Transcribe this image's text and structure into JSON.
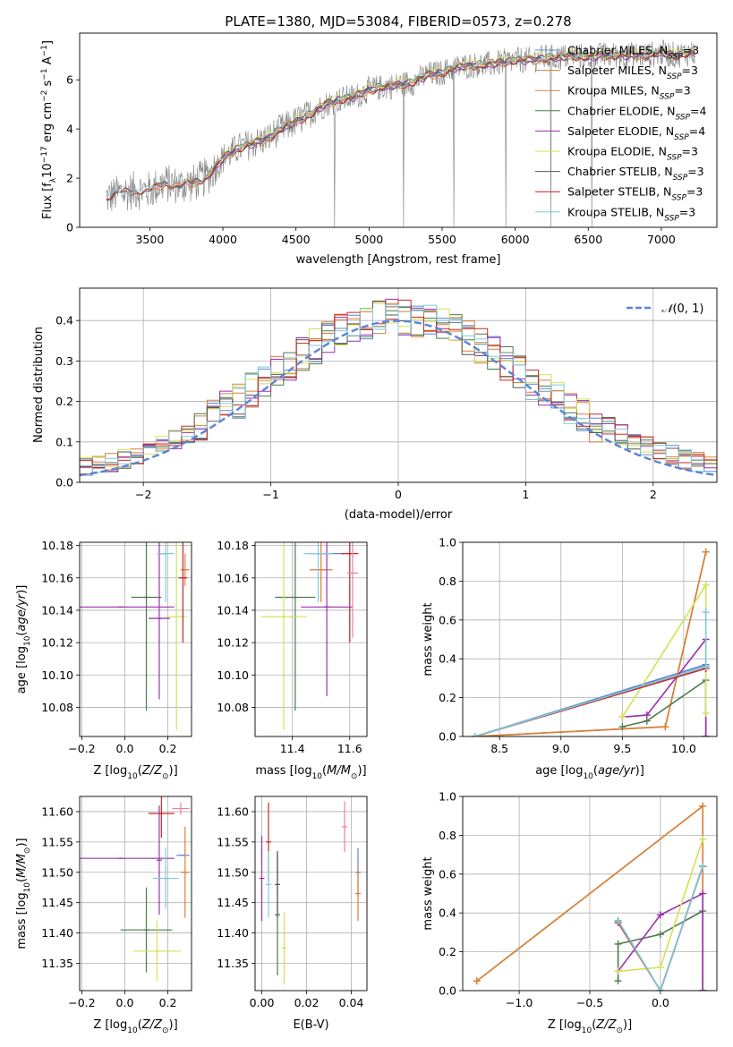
{
  "figure": {
    "title": "PLATE=1380, MJD=53084, FIBERID=0573, z=0.278"
  },
  "chart_data": [
    {
      "id": "spectrum",
      "type": "line",
      "xlabel": "wavelength [Angstrom, rest frame]",
      "ylabel": "Flux [f_λ 10^-17 erg cm^-2 s^-1 A^-1]",
      "xlim": [
        3020,
        7380
      ],
      "ylim": [
        0,
        7.9
      ],
      "xticks": [
        3500,
        4000,
        4500,
        5000,
        5500,
        6000,
        6500,
        7000
      ],
      "yticks": [
        0,
        2,
        4,
        6
      ],
      "grid": false,
      "legend_position": "upper-right",
      "data_x": [
        3200,
        3300,
        3400,
        3500,
        3600,
        3700,
        3800,
        3900,
        4000,
        4100,
        4200,
        4300,
        4400,
        4500,
        4600,
        4700,
        4800,
        4900,
        5000,
        5100,
        5200,
        5300,
        5400,
        5500,
        5600,
        5700,
        5800,
        5900,
        6000,
        6100,
        6200,
        6300,
        6400,
        6500,
        6600,
        6700,
        6800,
        6900,
        7000,
        7100,
        7200
      ],
      "data_y": [
        1.2,
        1.4,
        1.5,
        1.5,
        1.8,
        1.7,
        1.8,
        2.1,
        2.8,
        3.2,
        3.4,
        3.6,
        4.0,
        4.3,
        4.6,
        5.0,
        5.2,
        5.3,
        5.6,
        5.7,
        5.8,
        5.9,
        6.2,
        6.3,
        6.5,
        6.6,
        6.6,
        6.7,
        6.8,
        6.8,
        6.9,
        6.9,
        7.0,
        6.9,
        7.0,
        7.0,
        7.0,
        7.0,
        7.1,
        7.0,
        7.1
      ],
      "series": [
        {
          "name": "Chabrier MILES, N_SSP=3",
          "color": "#5b84d6",
          "offset": 0.0,
          "start": 3520
        },
        {
          "name": "Salpeter MILES, N_SSP=3",
          "color": "#e07b39",
          "offset": 0.05,
          "start": 3520
        },
        {
          "name": "Kroupa MILES, N_SSP=3",
          "color": "#d4823b",
          "offset": -0.05,
          "start": 3520
        },
        {
          "name": "Chabrier ELODIE, N_SSP=4",
          "color": "#4c7a4e",
          "offset": 0.02,
          "start": 3900
        },
        {
          "name": "Salpeter ELODIE, N_SSP=4",
          "color": "#9b2fae",
          "offset": -0.02,
          "start": 3900
        },
        {
          "name": "Kroupa ELODIE, N_SSP=3",
          "color": "#d4e157",
          "offset": 0.1,
          "start": 3900
        },
        {
          "name": "Chabrier STELIB, N_SSP=3",
          "color": "#555555",
          "offset": 0.0,
          "start": 3200
        },
        {
          "name": "Salpeter STELIB, N_SSP=3",
          "color": "#c62828",
          "offset": -0.04,
          "start": 3200
        },
        {
          "name": "Kroupa STELIB, N_SSP=3",
          "color": "#80cbd6",
          "offset": 0.03,
          "start": 3200
        }
      ]
    },
    {
      "id": "residuals",
      "type": "line",
      "xlabel": "(data-model)/error",
      "ylabel": "Normed distribution",
      "xlim": [
        -2.5,
        2.5
      ],
      "ylim": [
        0,
        0.48
      ],
      "xticks": [
        -2,
        -1,
        0,
        1,
        2
      ],
      "yticks": [
        0.0,
        0.1,
        0.2,
        0.3,
        0.4
      ],
      "grid": true,
      "legend_position": "upper-right",
      "reference": {
        "name": "N(0,1)",
        "color": "#5b84d6"
      },
      "hist_series_colors": [
        "#5b84d6",
        "#e07b39",
        "#d4823b",
        "#4c7a4e",
        "#9b2fae",
        "#d4e157",
        "#555555",
        "#c62828",
        "#80cbd6"
      ]
    },
    {
      "id": "age-vs-z",
      "type": "scatter",
      "xlabel": "Z [log10(Z/Z☉)]",
      "ylabel": "age [log10(age/yr)]",
      "xlim": [
        -0.21,
        0.31
      ],
      "ylim": [
        10.062,
        10.182
      ],
      "xticks": [
        -0.2,
        0.0,
        0.2
      ],
      "yticks": [
        10.08,
        10.1,
        10.12,
        10.14,
        10.16,
        10.18
      ],
      "grid": true,
      "points": [
        {
          "x": 0.17,
          "y": 10.175,
          "xerr": 0.02,
          "yerr": 0.0,
          "color": "#5b84d6"
        },
        {
          "x": 0.28,
          "y": 10.165,
          "xerr": 0.02,
          "yerr": 0.01,
          "color": "#e07b39"
        },
        {
          "x": 0.1,
          "y": 10.148,
          "xerr": 0.07,
          "yerr": 0.07,
          "color": "#4c7a4e"
        },
        {
          "x": -0.02,
          "y": 10.142,
          "xerr": 0.25,
          "yerr": 0.0,
          "color": "#9b2fae"
        },
        {
          "x": 0.16,
          "y": 10.135,
          "xerr": 0.05,
          "yerr": 0.05,
          "color": "#9b2fae"
        },
        {
          "x": 0.24,
          "y": 10.136,
          "xerr": 0.05,
          "yerr": 0.07,
          "color": "#d4e157"
        },
        {
          "x": 0.19,
          "y": 10.175,
          "xerr": 0.04,
          "yerr": 0.03,
          "color": "#80cbd6"
        },
        {
          "x": 0.27,
          "y": 10.16,
          "xerr": 0.02,
          "yerr": 0.04,
          "color": "#c62828"
        }
      ]
    },
    {
      "id": "age-vs-mass",
      "type": "scatter",
      "xlabel": "mass [log10(M/M☉)]",
      "ylabel": "",
      "xlim": [
        11.27,
        11.66
      ],
      "ylim": [
        10.062,
        10.182
      ],
      "xticks": [
        11.4,
        11.6
      ],
      "yticks": [
        10.08,
        10.1,
        10.12,
        10.14,
        10.16,
        10.18
      ],
      "grid": true,
      "points": [
        {
          "x": 11.52,
          "y": 10.175,
          "xerr": 0.06,
          "yerr": 0.0,
          "color": "#5b84d6"
        },
        {
          "x": 11.5,
          "y": 10.165,
          "xerr": 0.04,
          "yerr": 0.02,
          "color": "#e07b39"
        },
        {
          "x": 11.41,
          "y": 10.148,
          "xerr": 0.07,
          "yerr": 0.07,
          "color": "#4c7a4e"
        },
        {
          "x": 11.52,
          "y": 10.142,
          "xerr": 0.09,
          "yerr": 0.055,
          "color": "#9b2fae"
        },
        {
          "x": 11.37,
          "y": 10.136,
          "xerr": 0.08,
          "yerr": 0.07,
          "color": "#d4e157"
        },
        {
          "x": 11.49,
          "y": 10.175,
          "xerr": 0.05,
          "yerr": 0.03,
          "color": "#80cbd6"
        },
        {
          "x": 11.6,
          "y": 10.175,
          "xerr": 0.03,
          "yerr": 0.055,
          "color": "#c62828"
        },
        {
          "x": 11.61,
          "y": 10.163,
          "xerr": 0.02,
          "yerr": 0.04,
          "color": "#ec7fa9"
        }
      ]
    },
    {
      "id": "mass-weight-vs-age",
      "type": "line",
      "xlabel": "age [log10(age/yr)]",
      "ylabel": "mass weight",
      "xlim": [
        8.2,
        10.27
      ],
      "ylim": [
        0.0,
        1.0
      ],
      "xticks": [
        8.5,
        9.0,
        9.5,
        10.0
      ],
      "yticks": [
        0.0,
        0.2,
        0.4,
        0.6,
        0.8,
        1.0
      ],
      "grid": true,
      "series": [
        {
          "color": "#5b84d6",
          "x": [
            8.3,
            10.18
          ],
          "y": [
            0.0,
            0.37
          ]
        },
        {
          "color": "#e07b39",
          "x": [
            8.3,
            9.85,
            10.18
          ],
          "y": [
            0.0,
            0.05,
            0.95
          ]
        },
        {
          "color": "#d4823b",
          "x": [
            8.3,
            9.85,
            10.18
          ],
          "y": [
            0.0,
            0.05,
            0.95
          ]
        },
        {
          "color": "#4c7a4e",
          "x": [
            9.5,
            9.7,
            10.18,
            10.18
          ],
          "y": [
            0.05,
            0.08,
            0.29,
            0.0
          ]
        },
        {
          "color": "#9b2fae",
          "x": [
            9.5,
            9.7,
            10.18,
            10.18
          ],
          "y": [
            0.1,
            0.11,
            0.5,
            0.0
          ]
        },
        {
          "color": "#d4e157",
          "x": [
            9.5,
            10.18,
            10.18
          ],
          "y": [
            0.1,
            0.78,
            0.12
          ]
        },
        {
          "color": "#555555",
          "x": [
            8.3,
            10.18
          ],
          "y": [
            0.0,
            0.36
          ]
        },
        {
          "color": "#c62828",
          "x": [
            8.3,
            10.18
          ],
          "y": [
            0.0,
            0.35
          ]
        },
        {
          "color": "#80cbd6",
          "x": [
            8.3,
            10.18,
            10.18
          ],
          "y": [
            0.0,
            0.36,
            0.64
          ]
        }
      ]
    },
    {
      "id": "mass-vs-z",
      "type": "scatter",
      "xlabel": "Z [log10(Z/Z☉)]",
      "ylabel": "mass [log10(M/M☉)]",
      "xlim": [
        -0.21,
        0.31
      ],
      "ylim": [
        11.305,
        11.625
      ],
      "xticks": [
        -0.2,
        0.0,
        0.2
      ],
      "yticks": [
        11.35,
        11.4,
        11.45,
        11.5,
        11.55,
        11.6
      ],
      "grid": true,
      "points": [
        {
          "x": 0.27,
          "y": 11.528,
          "xerr": 0.03,
          "yerr": 0.0,
          "color": "#5b84d6"
        },
        {
          "x": 0.28,
          "y": 11.5,
          "xerr": 0.02,
          "yerr": 0.075,
          "color": "#e07b39"
        },
        {
          "x": 0.1,
          "y": 11.405,
          "xerr": 0.12,
          "yerr": 0.07,
          "color": "#4c7a4e"
        },
        {
          "x": -0.02,
          "y": 11.523,
          "xerr": 0.25,
          "yerr": 0.0,
          "color": "#9b2fae"
        },
        {
          "x": 0.16,
          "y": 11.52,
          "xerr": 0.0,
          "yerr": 0.09,
          "color": "#9b2fae"
        },
        {
          "x": 0.15,
          "y": 11.37,
          "xerr": 0.11,
          "yerr": 0.05,
          "color": "#d4e157"
        },
        {
          "x": 0.19,
          "y": 11.49,
          "xerr": 0.06,
          "yerr": 0.05,
          "color": "#80cbd6"
        },
        {
          "x": 0.17,
          "y": 11.597,
          "xerr": 0.06,
          "yerr": 0.04,
          "color": "#c62828"
        },
        {
          "x": 0.26,
          "y": 11.605,
          "xerr": 0.04,
          "yerr": 0.01,
          "color": "#ec7fa9"
        }
      ]
    },
    {
      "id": "mass-vs-ebv",
      "type": "scatter",
      "xlabel": "E(B-V)",
      "ylabel": "",
      "xlim": [
        -0.003,
        0.047
      ],
      "ylim": [
        11.305,
        11.625
      ],
      "xticks": [
        0.0,
        0.02,
        0.04
      ],
      "yticks": [
        11.35,
        11.4,
        11.45,
        11.5,
        11.55,
        11.6
      ],
      "grid": true,
      "points": [
        {
          "x": 0.0,
          "y": 11.49,
          "yerr": 0.07,
          "color": "#9b2fae"
        },
        {
          "x": 0.003,
          "y": 11.55,
          "yerr": 0.065,
          "color": "#c62828"
        },
        {
          "x": 0.003,
          "y": 11.48,
          "yerr": 0.055,
          "color": "#80cbd6"
        },
        {
          "x": 0.007,
          "y": 11.43,
          "yerr": 0.1,
          "color": "#4c7a4e"
        },
        {
          "x": 0.007,
          "y": 11.48,
          "yerr": 0.055,
          "color": "#555555"
        },
        {
          "x": 0.01,
          "y": 11.375,
          "yerr": 0.06,
          "color": "#d4e157"
        },
        {
          "x": 0.037,
          "y": 11.575,
          "yerr": 0.042,
          "color": "#ec7fa9"
        },
        {
          "x": 0.043,
          "y": 11.5,
          "yerr": 0.04,
          "color": "#5b84d6"
        },
        {
          "x": 0.043,
          "y": 11.465,
          "yerr": 0.045,
          "color": "#e07b39"
        }
      ]
    },
    {
      "id": "mass-weight-vs-z",
      "type": "line",
      "xlabel": "Z [log10(Z/Z☉)]",
      "ylabel": "mass weight",
      "xlim": [
        -1.4,
        0.4
      ],
      "ylim": [
        0.0,
        1.0
      ],
      "xticks": [
        -1.0,
        -0.5,
        0.0
      ],
      "yticks": [
        0.0,
        0.2,
        0.4,
        0.6,
        0.8,
        1.0
      ],
      "grid": true,
      "series": [
        {
          "color": "#5b84d6",
          "x": [
            -0.3,
            0.0,
            0.3
          ],
          "y": [
            0.36,
            0.0,
            0.64
          ]
        },
        {
          "color": "#e07b39",
          "x": [
            -1.3,
            0.3,
            0.3
          ],
          "y": [
            0.05,
            0.95,
            0.0
          ]
        },
        {
          "color": "#d4823b",
          "x": [
            -1.3,
            0.3
          ],
          "y": [
            0.05,
            0.95
          ]
        },
        {
          "color": "#4c7a4e",
          "x": [
            -0.3,
            -0.3,
            0.0,
            0.3,
            0.3
          ],
          "y": [
            0.05,
            0.24,
            0.29,
            0.41,
            0.0
          ]
        },
        {
          "color": "#9b2fae",
          "x": [
            -0.3,
            0.0,
            0.3,
            0.3
          ],
          "y": [
            0.1,
            0.39,
            0.5,
            0.0
          ]
        },
        {
          "color": "#d4e157",
          "x": [
            -0.3,
            0.0,
            0.3
          ],
          "y": [
            0.1,
            0.12,
            0.78
          ]
        },
        {
          "color": "#555555",
          "x": [
            -0.3,
            0.0,
            0.3
          ],
          "y": [
            0.36,
            0.0,
            0.64
          ]
        },
        {
          "color": "#c62828",
          "x": [
            -0.3,
            0.0,
            0.3
          ],
          "y": [
            0.35,
            0.0,
            0.64
          ]
        },
        {
          "color": "#80cbd6",
          "x": [
            -0.3,
            0.0,
            0.3
          ],
          "y": [
            0.36,
            0.0,
            0.64
          ]
        }
      ]
    }
  ]
}
